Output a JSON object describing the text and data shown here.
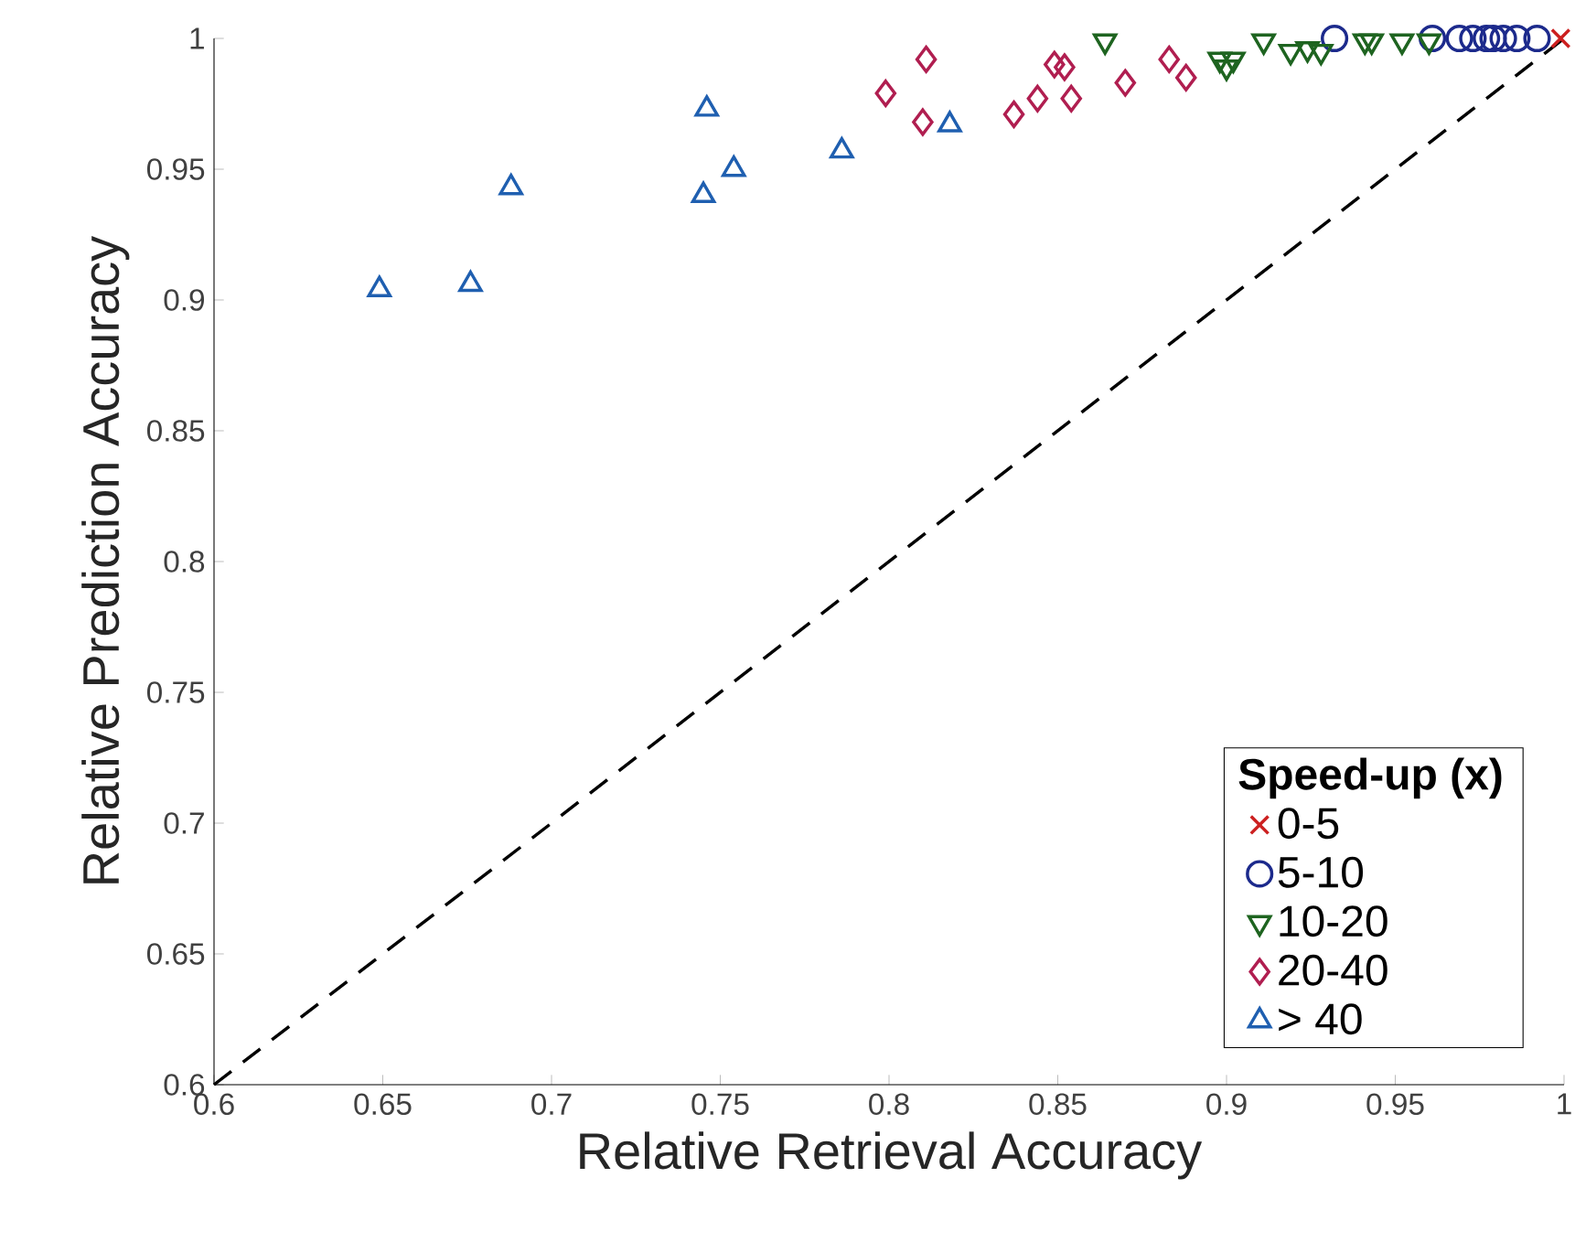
{
  "chart_data": {
    "type": "scatter",
    "xlabel": "Relative Retrieval Accuracy",
    "ylabel": "Relative Prediction Accuracy",
    "legend_title": "Speed-up (x)",
    "legend": "bottom right",
    "xlim": [
      0.6,
      1
    ],
    "ylim": [
      0.6,
      1
    ],
    "xticks": [
      0.6,
      0.65,
      0.7,
      0.75,
      0.8,
      0.85,
      0.9,
      0.95,
      1
    ],
    "yticks": [
      0.6,
      0.65,
      0.7,
      0.75,
      0.8,
      0.85,
      0.9,
      0.95,
      1
    ],
    "grid": false,
    "series": [
      {
        "name": "0-5",
        "color": "#cc2020",
        "marker": "cross",
        "x": [
          0.999
        ],
        "values": [
          1.0
        ]
      },
      {
        "name": "5-10",
        "color": "#1c2a8c",
        "marker": "circle",
        "x": [
          0.932,
          0.961,
          0.969,
          0.973,
          0.977,
          0.979,
          0.982,
          0.986,
          0.992
        ],
        "values": [
          1.0,
          1.0,
          1.0,
          1.0,
          1.0,
          1.0,
          1.0,
          1.0,
          1.0
        ]
      },
      {
        "name": "10-20",
        "color": "#1e6420",
        "marker": "triangle-down",
        "x": [
          0.864,
          0.898,
          0.902,
          0.9,
          0.911,
          0.919,
          0.924,
          0.928,
          0.941,
          0.943,
          0.952,
          0.96
        ],
        "values": [
          0.999,
          0.992,
          0.992,
          0.989,
          0.999,
          0.995,
          0.996,
          0.995,
          0.999,
          0.999,
          0.999,
          0.999
        ]
      },
      {
        "name": "20-40",
        "color": "#b01e50",
        "marker": "diamond",
        "x": [
          0.811,
          0.799,
          0.81,
          0.837,
          0.844,
          0.854,
          0.849,
          0.852,
          0.87,
          0.883,
          0.888
        ],
        "values": [
          0.992,
          0.979,
          0.968,
          0.971,
          0.977,
          0.977,
          0.99,
          0.989,
          0.983,
          0.992,
          0.985
        ]
      },
      {
        "name": "> 40",
        "color": "#1f5fb0",
        "marker": "triangle",
        "x": [
          0.649,
          0.676,
          0.688,
          0.746,
          0.745,
          0.754,
          0.786,
          0.818
        ],
        "values": [
          0.904,
          0.906,
          0.943,
          0.973,
          0.94,
          0.95,
          0.957,
          0.967
        ]
      },
      {
        "type": "line",
        "color": "#000000",
        "marker": "none",
        "line_style": "dashed",
        "x": [
          0.6,
          1
        ],
        "values": [
          0.6,
          1
        ]
      }
    ]
  }
}
